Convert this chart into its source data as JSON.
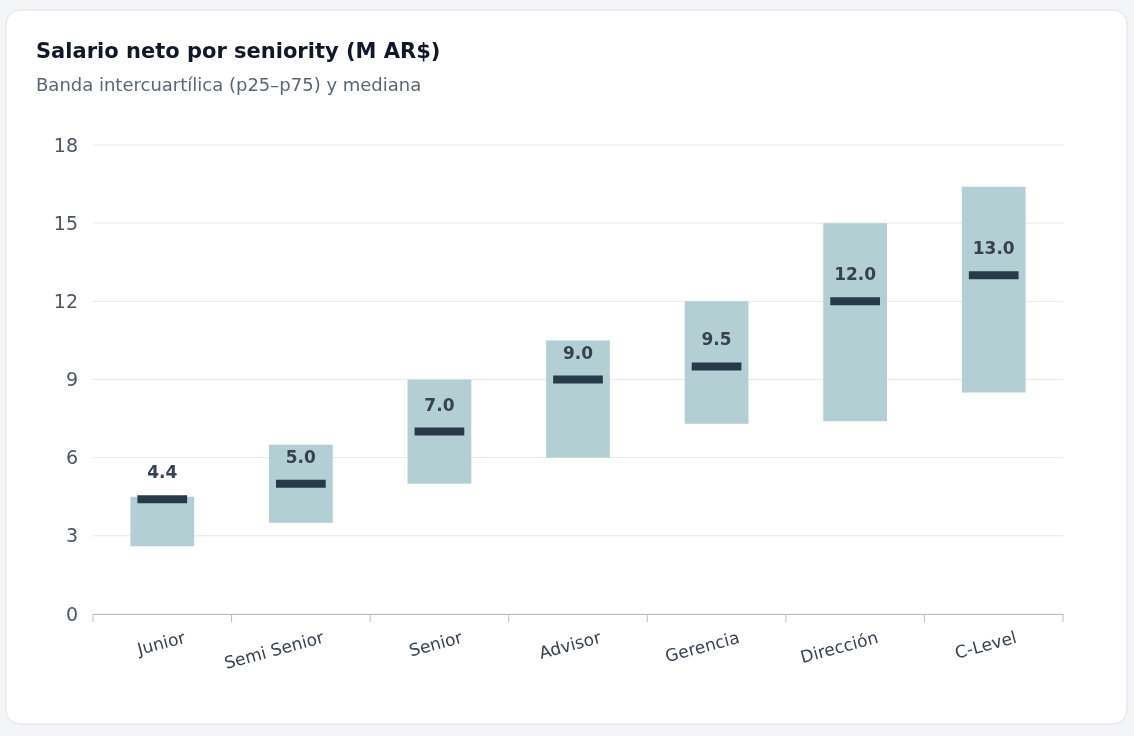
{
  "chart_data": {
    "type": "box",
    "title": "Salario neto por seniority (M AR$)",
    "subtitle": "Banda intercuartílica (p25–p75) y mediana",
    "categories": [
      "Junior",
      "Semi Senior",
      "Senior",
      "Advisor",
      "Gerencia",
      "Dirección",
      "C-Level"
    ],
    "series": [
      {
        "color": "#b3cfd4",
        "boxes": [
          {
            "low": 2.6,
            "q1": 2.6,
            "median": 4.4,
            "q3": 4.5,
            "high": 4.5
          },
          {
            "low": 3.5,
            "q1": 3.5,
            "median": 5.0,
            "q3": 6.5,
            "high": 6.5
          },
          {
            "low": 5.0,
            "q1": 5.0,
            "median": 7.0,
            "q3": 9.0,
            "high": 9.0
          },
          {
            "low": 6.0,
            "q1": 6.0,
            "median": 9.0,
            "q3": 10.5,
            "high": 10.5
          },
          {
            "low": 7.3,
            "q1": 7.3,
            "median": 9.5,
            "q3": 12.0,
            "high": 12.0
          },
          {
            "low": 7.4,
            "q1": 7.4,
            "median": 12.0,
            "q3": 15.0,
            "high": 15.0
          },
          {
            "low": 8.5,
            "q1": 8.5,
            "median": 13.0,
            "q3": 16.4,
            "high": 16.4
          }
        ]
      }
    ],
    "value_labels": [
      "4.4",
      "5.0",
      "7.0",
      "9.0",
      "9.5",
      "12.0",
      "13.0"
    ],
    "ylim": [
      0,
      18
    ],
    "yticks": [
      0,
      3,
      6,
      9,
      12,
      15,
      18
    ],
    "grid": "y"
  }
}
